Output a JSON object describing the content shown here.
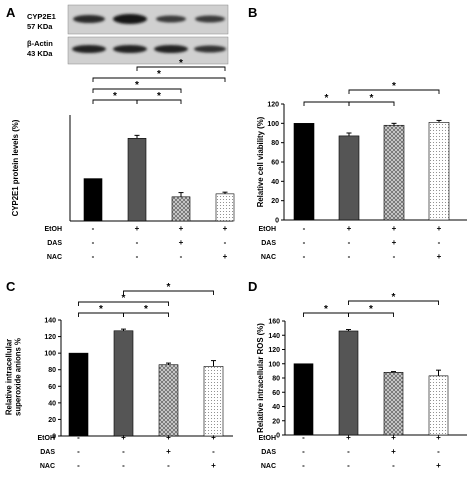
{
  "chart_data": [
    {
      "type": "bar",
      "panel_letter": "A",
      "blot": {
        "bands": [
          {
            "label_lines": [
              "CYP2E1",
              "57 KDa"
            ]
          },
          {
            "label_lines": [
              "β-Actin",
              "43 KDa"
            ]
          }
        ]
      },
      "ylabel": "CYP2E1  protein levels (%)",
      "ylim": [
        0,
        250
      ],
      "yticks": [],
      "grid": false,
      "legend": "none",
      "values": [
        100,
        195,
        57,
        64
      ],
      "errors": [
        0,
        7,
        10,
        4
      ],
      "bar_fills": [
        "#000000",
        "#555555",
        "crosshatch",
        "dots"
      ],
      "treatment_rows": [
        {
          "label": "EtOH",
          "signs": [
            "-",
            "+",
            "+",
            "+"
          ]
        },
        {
          "label": "DAS",
          "signs": [
            "-",
            "-",
            "+",
            "-"
          ]
        },
        {
          "label": "NAC",
          "signs": [
            "-",
            "-",
            "-",
            "+"
          ]
        }
      ],
      "significance": [
        {
          "from": 0,
          "to": 1,
          "label": "*",
          "tier": 0
        },
        {
          "from": 1,
          "to": 2,
          "label": "*",
          "tier": 0
        },
        {
          "from": 0,
          "to": 2,
          "label": "*",
          "tier": 1
        },
        {
          "from": 0,
          "to": 3,
          "label": "*",
          "tier": 2
        },
        {
          "from": 1,
          "to": 3,
          "label": "*",
          "tier": 3
        }
      ]
    },
    {
      "type": "bar",
      "panel_letter": "B",
      "ylabel": "Relative cell viability (%)",
      "ylim": [
        0,
        120
      ],
      "yticks": [
        0,
        20,
        40,
        60,
        80,
        100,
        120
      ],
      "grid": false,
      "legend": "none",
      "values": [
        100,
        87,
        98,
        101
      ],
      "errors": [
        0,
        3,
        2,
        2
      ],
      "bar_fills": [
        "#000000",
        "#555555",
        "crosshatch",
        "dots"
      ],
      "treatment_rows": [
        {
          "label": "EtOH",
          "signs": [
            "-",
            "+",
            "+",
            "+"
          ]
        },
        {
          "label": "DAS",
          "signs": [
            "-",
            "-",
            "+",
            "-"
          ]
        },
        {
          "label": "NAC",
          "signs": [
            "-",
            "-",
            "-",
            "+"
          ]
        }
      ],
      "significance": [
        {
          "from": 0,
          "to": 1,
          "label": "*",
          "tier": 0
        },
        {
          "from": 1,
          "to": 2,
          "label": "*",
          "tier": 0
        },
        {
          "from": 1,
          "to": 3,
          "label": "*",
          "tier": 1
        }
      ]
    },
    {
      "type": "bar",
      "panel_letter": "C",
      "ylabel": "Relative intracellular superoxide anions %",
      "ylabel_lines": [
        "Relative intracellular",
        "superoxide anions %"
      ],
      "ylim": [
        0,
        140
      ],
      "yticks": [
        0,
        20,
        40,
        60,
        80,
        100,
        120,
        140
      ],
      "grid": false,
      "legend": "none",
      "values": [
        100,
        127,
        86,
        84
      ],
      "errors": [
        0,
        2,
        2,
        7
      ],
      "bar_fills": [
        "#000000",
        "#555555",
        "crosshatch",
        "dots"
      ],
      "treatment_rows": [
        {
          "label": "EtOH",
          "signs": [
            "-",
            "+",
            "+",
            "+"
          ]
        },
        {
          "label": "DAS",
          "signs": [
            "-",
            "-",
            "+",
            "-"
          ]
        },
        {
          "label": "NAC",
          "signs": [
            "-",
            "-",
            "-",
            "+"
          ]
        }
      ],
      "significance": [
        {
          "from": 0,
          "to": 1,
          "label": "*",
          "tier": 0
        },
        {
          "from": 1,
          "to": 2,
          "label": "*",
          "tier": 0
        },
        {
          "from": 0,
          "to": 2,
          "label": "*",
          "tier": 1
        },
        {
          "from": 1,
          "to": 3,
          "label": "*",
          "tier": 2
        }
      ]
    },
    {
      "type": "bar",
      "panel_letter": "D",
      "ylabel": "Relative  intracellular ROS (%)",
      "ylim": [
        0,
        160
      ],
      "yticks": [
        0,
        20,
        40,
        60,
        80,
        100,
        120,
        140,
        160
      ],
      "grid": false,
      "legend": "none",
      "values": [
        100,
        146,
        88,
        83
      ],
      "errors": [
        0,
        2,
        1,
        8
      ],
      "bar_fills": [
        "#000000",
        "#555555",
        "crosshatch",
        "dots"
      ],
      "treatment_rows": [
        {
          "label": "EtOH",
          "signs": [
            "-",
            "+",
            "+",
            "+"
          ]
        },
        {
          "label": "DAS",
          "signs": [
            "-",
            "-",
            "+",
            "-"
          ]
        },
        {
          "label": "NAC",
          "signs": [
            "-",
            "-",
            "-",
            "+"
          ]
        }
      ],
      "significance": [
        {
          "from": 0,
          "to": 1,
          "label": "*",
          "tier": 0
        },
        {
          "from": 1,
          "to": 2,
          "label": "*",
          "tier": 0
        },
        {
          "from": 1,
          "to": 3,
          "label": "*",
          "tier": 1
        }
      ]
    }
  ]
}
